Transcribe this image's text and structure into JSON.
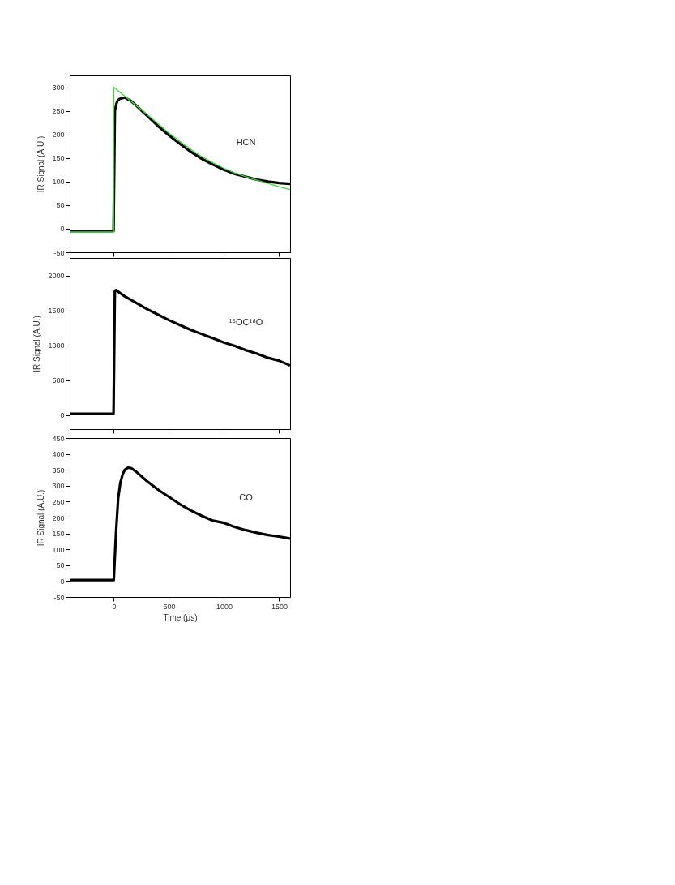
{
  "chart_data": [
    {
      "type": "line",
      "ylabel": "IR Signal (A.U.)",
      "xlim": [
        -400,
        1600
      ],
      "xticks": [
        0,
        500,
        1000,
        1500
      ],
      "ylim": [
        -50,
        325
      ],
      "yticks": [
        -50,
        0,
        50,
        100,
        150,
        200,
        250,
        300
      ],
      "tick_labels": "y",
      "grid": false,
      "series": [
        {
          "name": "HCN",
          "color": "#000000",
          "x": [
            -400,
            -300,
            -200,
            -100,
            -2,
            10,
            30,
            50,
            100,
            150,
            200,
            300,
            400,
            500,
            600,
            700,
            800,
            900,
            1000,
            1100,
            1200,
            1300,
            1400,
            1500,
            1600
          ],
          "values": [
            -5,
            -5,
            -5,
            -5,
            -5,
            250,
            270,
            275,
            278,
            272,
            262,
            240,
            218,
            198,
            180,
            163,
            148,
            136,
            125,
            116,
            110,
            104,
            100,
            97,
            95
          ]
        },
        {
          "color": "#33dd33",
          "x": [
            -400,
            -200,
            -1,
            0,
            100,
            200,
            300,
            400,
            500,
            600,
            700,
            800,
            900,
            1000,
            1100,
            1200,
            1300,
            1400,
            1500,
            1600
          ],
          "values": [
            -7,
            -7,
            -7,
            300,
            281,
            262,
            243,
            223,
            203,
            185,
            168,
            153,
            140,
            128,
            118,
            110,
            103,
            96,
            89,
            83
          ]
        }
      ]
    },
    {
      "type": "line",
      "ylabel": "IR Signal (A.U.)",
      "xlim": [
        -400,
        1600
      ],
      "xticks": [
        0,
        500,
        1000,
        1500
      ],
      "ylim": [
        -200,
        2250
      ],
      "yticks": [
        0,
        500,
        1000,
        1500,
        2000
      ],
      "tick_labels": "y",
      "grid": false,
      "series": [
        {
          "name": "¹⁶OC¹⁸O",
          "color": "#000000",
          "x": [
            -400,
            -300,
            -200,
            -100,
            -2,
            10,
            20,
            100,
            200,
            300,
            400,
            500,
            600,
            700,
            800,
            900,
            1000,
            1100,
            1200,
            1300,
            1400,
            1500,
            1600
          ],
          "values": [
            20,
            20,
            20,
            20,
            20,
            1780,
            1790,
            1700,
            1610,
            1520,
            1440,
            1360,
            1290,
            1220,
            1160,
            1100,
            1040,
            990,
            930,
            880,
            820,
            780,
            710
          ]
        }
      ]
    },
    {
      "type": "line",
      "ylabel": "IR Signal (A.U.)",
      "xlabel": "Time (μs)",
      "xlim": [
        -400,
        1600
      ],
      "xticks": [
        0,
        500,
        1000,
        1500
      ],
      "ylim": [
        -50,
        450
      ],
      "yticks": [
        -50,
        0,
        50,
        100,
        150,
        200,
        250,
        300,
        350,
        400,
        450
      ],
      "grid": false,
      "series": [
        {
          "name": "CO",
          "color": "#000000",
          "x": [
            -400,
            -300,
            -200,
            -100,
            0,
            20,
            40,
            60,
            80,
            100,
            130,
            160,
            200,
            300,
            400,
            500,
            600,
            700,
            800,
            900,
            1000,
            1100,
            1200,
            1300,
            1400,
            1500,
            1600
          ],
          "values": [
            3,
            3,
            3,
            3,
            3,
            150,
            260,
            310,
            335,
            350,
            357,
            355,
            345,
            315,
            288,
            265,
            242,
            222,
            205,
            190,
            183,
            170,
            160,
            152,
            145,
            140,
            134
          ]
        }
      ]
    }
  ]
}
